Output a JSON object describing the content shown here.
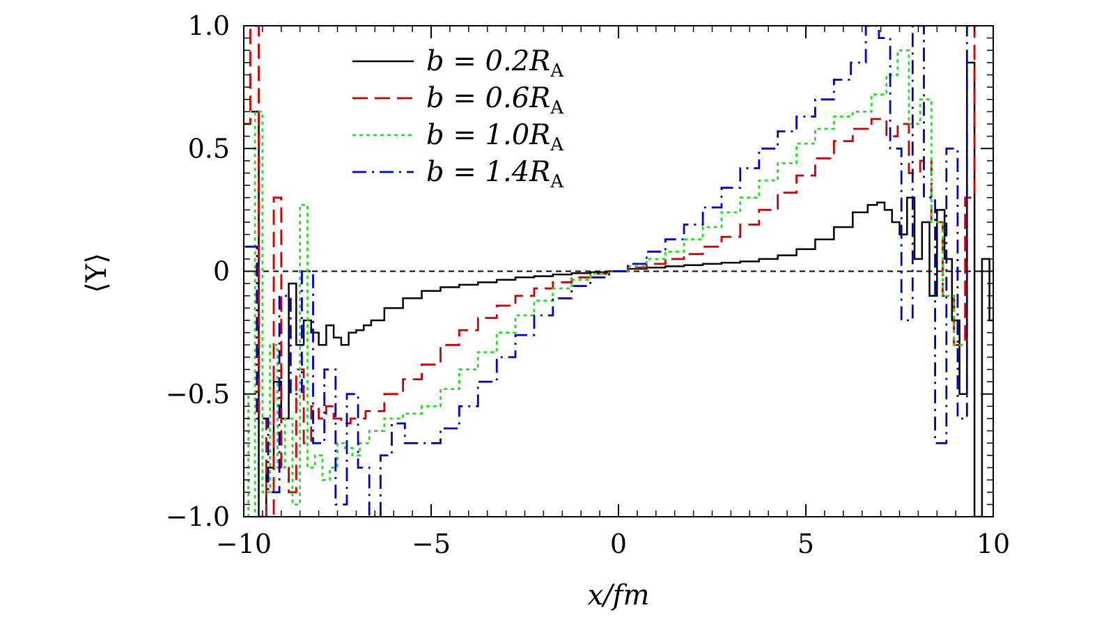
{
  "chart_data": {
    "type": "line",
    "step": true,
    "title": "",
    "xlabel": "x/fm",
    "ylabel": "⟨Y⟩",
    "xlim": [
      -10,
      10
    ],
    "ylim": [
      -1.0,
      1.0
    ],
    "x_ticks": [
      {
        "value": -10,
        "label": "−10"
      },
      {
        "value": -5,
        "label": "−5"
      },
      {
        "value": 0,
        "label": "0"
      },
      {
        "value": 5,
        "label": "5"
      },
      {
        "value": 10,
        "label": "10"
      }
    ],
    "y_ticks": [
      {
        "value": 1.0,
        "label": "1.0"
      },
      {
        "value": 0.5,
        "label": "0.5"
      },
      {
        "value": 0,
        "label": "0"
      },
      {
        "value": -0.5,
        "label": "−0.5"
      },
      {
        "value": -1.0,
        "label": "−1.0"
      }
    ],
    "reference_line": {
      "y": 0,
      "style": "dashed",
      "color": "#000000"
    },
    "legend_position": "top-left",
    "series": [
      {
        "name": "b = 0.2R_A",
        "legend_label": "b = 0.2R",
        "legend_sub": "A",
        "color": "#000000",
        "dash": "solid",
        "x": [
          -9.7,
          -9.5,
          -9.3,
          -9.1,
          -8.9,
          -8.7,
          -8.5,
          -8.3,
          -8.1,
          -7.9,
          -7.7,
          -7.5,
          -7.3,
          -7.1,
          -6.9,
          -6.7,
          -6.5,
          -6.0,
          -5.5,
          -5.0,
          -4.5,
          -4.0,
          -3.5,
          -3.0,
          -2.5,
          -2.0,
          -1.5,
          -1.0,
          -0.5,
          0,
          0.5,
          1.0,
          1.5,
          2.0,
          2.5,
          3.0,
          3.5,
          4.0,
          4.5,
          5.0,
          5.5,
          6.0,
          6.5,
          6.8,
          7.0,
          7.2,
          7.4,
          7.6,
          7.8,
          8.0,
          8.2,
          8.4,
          8.6,
          8.8,
          9.0,
          9.2,
          9.4,
          9.6,
          9.8,
          10.0
        ],
        "y": [
          0.65,
          -1.0,
          -0.8,
          -0.45,
          -0.6,
          -0.05,
          -0.3,
          -0.2,
          -0.25,
          -0.3,
          -0.22,
          -0.27,
          -0.3,
          -0.25,
          -0.24,
          -0.22,
          -0.2,
          -0.15,
          -0.11,
          -0.08,
          -0.065,
          -0.055,
          -0.045,
          -0.035,
          -0.025,
          -0.02,
          -0.013,
          -0.008,
          -0.004,
          0,
          0.01,
          0.015,
          0.02,
          0.025,
          0.03,
          0.035,
          0.04,
          0.05,
          0.065,
          0.09,
          0.13,
          0.18,
          0.24,
          0.27,
          0.28,
          0.25,
          0.2,
          0.15,
          0.3,
          0.05,
          0.2,
          -0.1,
          0.25,
          0.05,
          -0.2,
          -0.5,
          0.85,
          -1.0,
          0.05,
          -0.2
        ]
      },
      {
        "name": "b = 0.6R_A",
        "legend_label": "b = 0.6R",
        "legend_sub": "A",
        "color": "#cc0000",
        "dash": "long-dash",
        "x": [
          -9.95,
          -9.7,
          -9.5,
          -9.3,
          -9.1,
          -8.9,
          -8.7,
          -8.5,
          -8.3,
          -8.1,
          -7.9,
          -7.7,
          -7.5,
          -7.3,
          -7.0,
          -6.5,
          -6.0,
          -5.5,
          -5.0,
          -4.5,
          -4.0,
          -3.5,
          -3.0,
          -2.5,
          -2.0,
          -1.5,
          -1.0,
          -0.5,
          0,
          0.5,
          1.0,
          1.5,
          2.0,
          2.5,
          3.0,
          3.5,
          4.0,
          4.5,
          5.0,
          5.5,
          6.0,
          6.5,
          7.0,
          7.3,
          7.6,
          7.9,
          8.2,
          8.5,
          8.8,
          9.1,
          9.4,
          9.6
        ],
        "y": [
          0.6,
          1.0,
          -0.6,
          -1.0,
          0.3,
          -0.8,
          -0.9,
          -0.4,
          -0.7,
          -0.55,
          -0.6,
          -0.55,
          -0.6,
          -0.62,
          -0.6,
          -0.57,
          -0.5,
          -0.44,
          -0.38,
          -0.3,
          -0.24,
          -0.19,
          -0.14,
          -0.1,
          -0.07,
          -0.045,
          -0.025,
          -0.01,
          0,
          0.015,
          0.03,
          0.05,
          0.07,
          0.1,
          0.14,
          0.19,
          0.25,
          0.32,
          0.39,
          0.46,
          0.53,
          0.58,
          0.62,
          0.55,
          0.6,
          0.4,
          0.45,
          0.2,
          -0.1,
          -0.3,
          0.3,
          1.0
        ]
      },
      {
        "name": "b = 1.0R_A",
        "legend_label": "b = 1.0R",
        "legend_sub": "A",
        "color": "#22dd22",
        "dash": "dotted",
        "x": [
          -9.95,
          -9.8,
          -9.6,
          -9.4,
          -9.2,
          -9.0,
          -8.8,
          -8.6,
          -8.4,
          -8.2,
          -8.0,
          -7.8,
          -7.6,
          -7.4,
          -7.2,
          -7.0,
          -6.8,
          -6.5,
          -6.0,
          -5.5,
          -5.0,
          -4.5,
          -4.0,
          -3.5,
          -3.0,
          -2.5,
          -2.0,
          -1.5,
          -1.0,
          -0.5,
          0,
          0.5,
          1.0,
          1.5,
          2.0,
          2.5,
          3.0,
          3.5,
          4.0,
          4.5,
          5.0,
          5.5,
          6.0,
          6.5,
          7.0,
          7.3,
          7.6,
          7.9,
          8.2,
          8.5,
          8.8,
          9.1
        ],
        "y": [
          -0.5,
          -1.0,
          0.65,
          -0.9,
          -0.3,
          -0.8,
          -0.6,
          -0.95,
          0.27,
          -0.8,
          -0.75,
          -0.85,
          -0.8,
          -0.7,
          -0.72,
          -0.75,
          -0.7,
          -0.65,
          -0.6,
          -0.58,
          -0.55,
          -0.48,
          -0.4,
          -0.33,
          -0.25,
          -0.18,
          -0.12,
          -0.07,
          -0.035,
          -0.01,
          0,
          0.02,
          0.05,
          0.08,
          0.13,
          0.18,
          0.24,
          0.3,
          0.37,
          0.44,
          0.52,
          0.58,
          0.63,
          0.65,
          0.72,
          0.8,
          0.9,
          0.6,
          0.7,
          0.2,
          -0.1,
          -0.3
        ]
      },
      {
        "name": "b = 1.4R_A",
        "legend_label": "b = 1.4R",
        "legend_sub": "A",
        "color": "#0000bb",
        "dash": "dash-dot",
        "x": [
          -9.8,
          -9.5,
          -9.2,
          -8.9,
          -8.6,
          -8.3,
          -8.0,
          -7.7,
          -7.4,
          -7.1,
          -6.8,
          -6.5,
          -6.2,
          -5.9,
          -5.5,
          -5.0,
          -4.5,
          -4.0,
          -3.5,
          -3.0,
          -2.5,
          -2.0,
          -1.5,
          -1.0,
          -0.5,
          0,
          0.5,
          1.0,
          1.5,
          2.0,
          2.5,
          3.0,
          3.5,
          4.0,
          4.5,
          5.0,
          5.5,
          6.0,
          6.4,
          6.8,
          7.1,
          7.4,
          7.7,
          8.0,
          8.3,
          8.6,
          8.9,
          9.2,
          9.4
        ],
        "y": [
          0.1,
          -0.6,
          -0.9,
          -0.1,
          -0.5,
          0.0,
          -0.7,
          -0.4,
          -0.95,
          -0.5,
          -0.8,
          -1.0,
          -0.75,
          -0.62,
          -0.7,
          -0.7,
          -0.64,
          -0.55,
          -0.45,
          -0.35,
          -0.26,
          -0.18,
          -0.11,
          -0.06,
          -0.025,
          0,
          0.03,
          0.08,
          0.13,
          0.19,
          0.26,
          0.34,
          0.42,
          0.5,
          0.57,
          0.63,
          0.7,
          0.78,
          0.85,
          1.0,
          0.95,
          0.5,
          -0.2,
          1.0,
          0.3,
          -0.7,
          0.5,
          -0.6,
          1.0
        ]
      }
    ]
  }
}
